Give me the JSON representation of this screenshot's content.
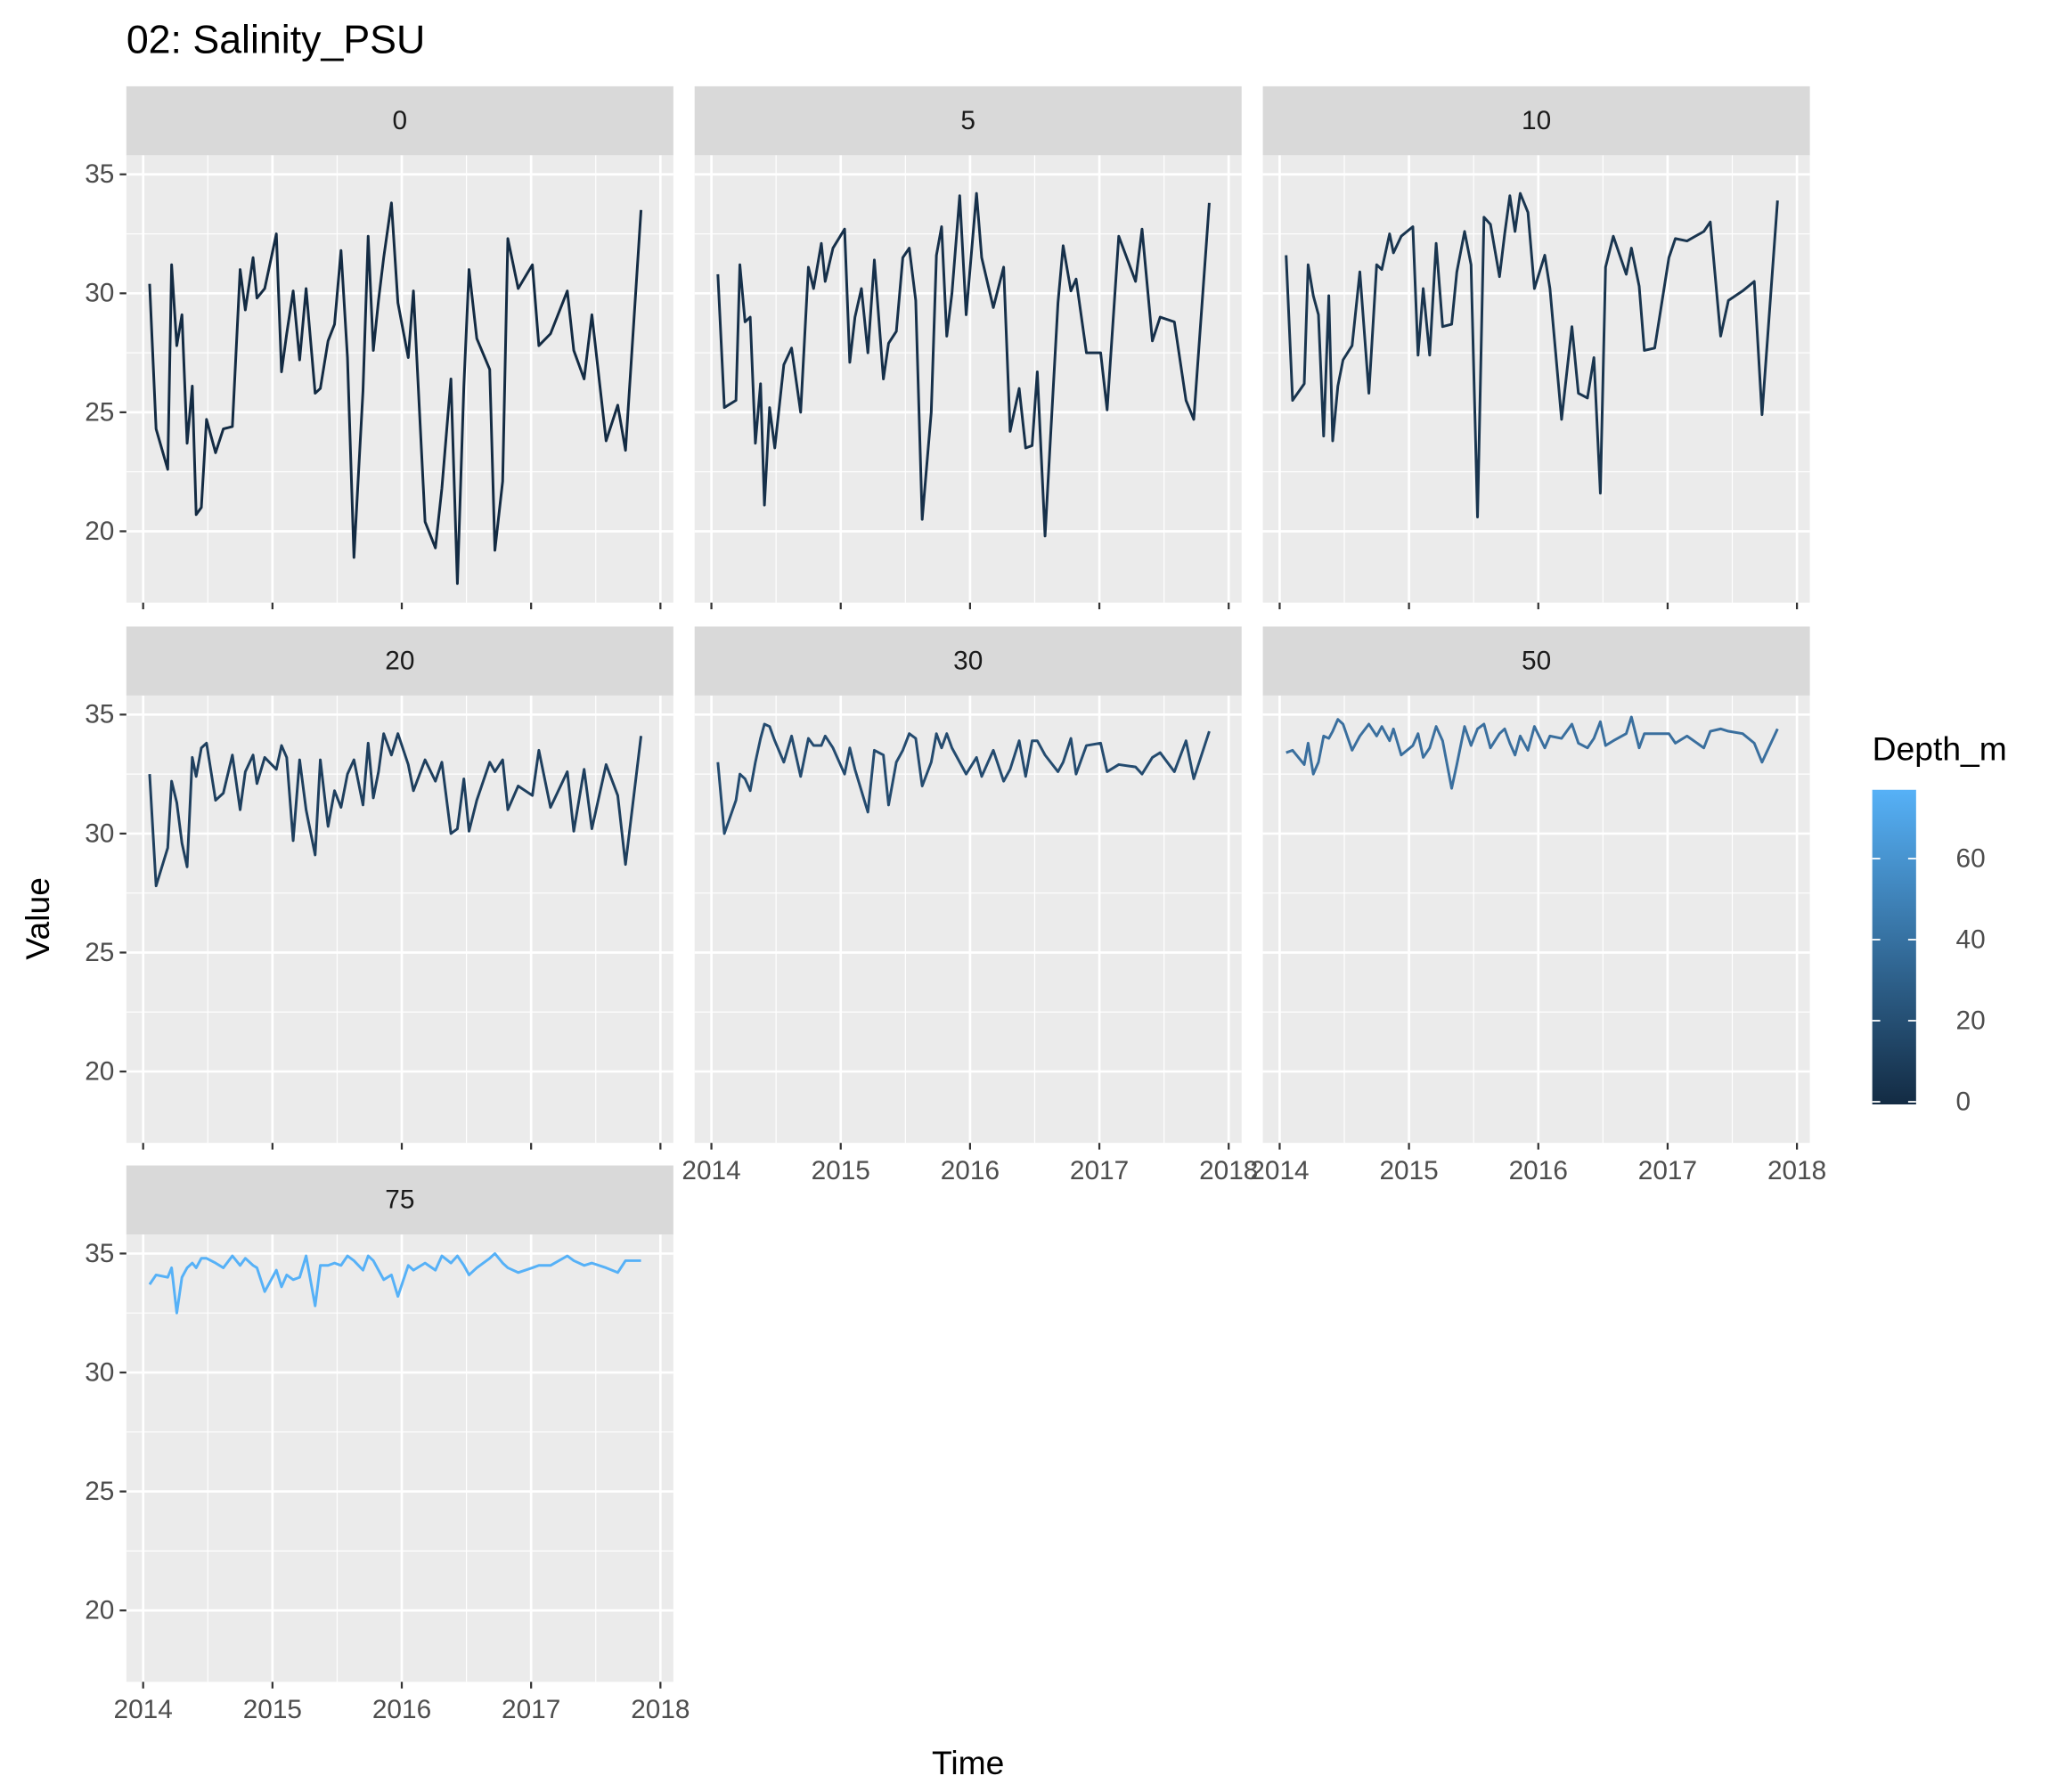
{
  "chart_data": {
    "type": "line",
    "title": "02: Salinity_PSU",
    "xlabel": "Time",
    "ylabel": "Value",
    "xlim": [
      2013.87,
      2018.1
    ],
    "xticks": [
      2014,
      2015,
      2016,
      2017,
      2018
    ],
    "ylim": [
      17.0,
      35.8
    ],
    "yticks": [
      20,
      25,
      30,
      35
    ],
    "grid": true,
    "x": [
      2014.05,
      2014.1,
      2014.19,
      2014.22,
      2014.26,
      2014.3,
      2014.34,
      2014.38,
      2014.41,
      2014.45,
      2014.49,
      2014.56,
      2014.62,
      2014.69,
      2014.75,
      2014.79,
      2014.85,
      2014.88,
      2014.94,
      2015.03,
      2015.07,
      2015.11,
      2015.16,
      2015.21,
      2015.26,
      2015.33,
      2015.37,
      2015.43,
      2015.48,
      2015.53,
      2015.58,
      2015.63,
      2015.7,
      2015.74,
      2015.78,
      2015.82,
      2015.86,
      2015.92,
      2015.97,
      2016.05,
      2016.09,
      2016.18,
      2016.26,
      2016.31,
      2016.38,
      2016.43,
      2016.48,
      2016.52,
      2016.58,
      2016.68,
      2016.72,
      2016.78,
      2016.82,
      2016.9,
      2017.01,
      2017.06,
      2017.15,
      2017.28,
      2017.33,
      2017.41,
      2017.47,
      2017.58,
      2017.67,
      2017.73,
      2017.85
    ],
    "series": [
      {
        "name": "0",
        "color": "#132B43",
        "values": [
          30.4,
          24.3,
          22.6,
          31.2,
          27.8,
          29.1,
          23.7,
          26.1,
          20.7,
          21.0,
          24.7,
          23.3,
          24.3,
          24.4,
          31.0,
          29.3,
          31.5,
          29.8,
          30.2,
          32.5,
          26.7,
          28.3,
          30.1,
          27.2,
          30.2,
          25.8,
          26.0,
          28.0,
          28.7,
          31.8,
          27.3,
          18.9,
          25.9,
          32.4,
          27.6,
          29.7,
          31.5,
          33.8,
          29.6,
          27.3,
          30.1,
          20.4,
          19.3,
          21.8,
          26.4,
          17.8,
          26.1,
          31.0,
          28.1,
          26.8,
          19.2,
          22.1,
          32.3,
          30.2,
          31.2,
          27.8,
          28.3,
          30.1,
          27.6,
          26.4,
          29.1,
          23.8,
          25.3,
          23.4,
          33.5
        ]
      },
      {
        "name": "5",
        "color": "#16304A",
        "values": [
          30.8,
          25.2,
          25.5,
          31.2,
          28.8,
          29.0,
          23.7,
          26.2,
          21.1,
          25.2,
          23.5,
          27.0,
          27.7,
          25.0,
          31.1,
          30.2,
          32.1,
          30.5,
          31.9,
          32.7,
          27.1,
          29.0,
          30.2,
          27.5,
          31.4,
          26.4,
          27.9,
          28.4,
          31.5,
          31.9,
          29.7,
          20.5,
          25.0,
          31.6,
          32.8,
          28.2,
          30.0,
          34.1,
          29.1,
          34.2,
          31.5,
          29.4,
          31.1,
          24.2,
          26.0,
          23.5,
          23.6,
          26.7,
          19.8,
          29.6,
          32.0,
          30.1,
          30.6,
          27.5,
          27.5,
          25.1,
          32.4,
          30.5,
          32.7,
          28.0,
          29.0,
          28.8,
          25.5,
          24.7,
          33.8
        ]
      },
      {
        "name": "10",
        "color": "#19354F",
        "values": [
          31.6,
          25.5,
          26.2,
          31.2,
          29.9,
          29.1,
          24.0,
          29.9,
          23.8,
          26.1,
          27.2,
          27.8,
          30.9,
          25.8,
          31.2,
          31.0,
          32.5,
          31.7,
          32.4,
          32.8,
          27.4,
          30.2,
          27.4,
          32.1,
          28.6,
          28.7,
          30.9,
          32.6,
          31.2,
          20.6,
          33.2,
          32.9,
          30.7,
          32.5,
          34.1,
          32.6,
          34.2,
          33.4,
          30.2,
          31.6,
          30.2,
          24.7,
          28.6,
          25.8,
          25.6,
          27.3,
          21.6,
          31.1,
          32.4,
          30.8,
          31.9,
          30.3,
          27.6,
          27.7,
          31.5,
          32.3,
          32.2,
          32.6,
          33.0,
          28.2,
          29.7,
          30.1,
          30.5,
          24.9,
          33.9
        ]
      },
      {
        "name": "20",
        "color": "#1E3F5E",
        "values": [
          32.5,
          27.8,
          29.4,
          32.2,
          31.3,
          29.6,
          28.6,
          33.2,
          32.4,
          33.6,
          33.8,
          31.4,
          31.7,
          33.3,
          31.0,
          32.6,
          33.3,
          32.1,
          33.2,
          32.7,
          33.7,
          33.2,
          29.7,
          33.1,
          31.0,
          29.1,
          33.1,
          30.3,
          31.8,
          31.1,
          32.5,
          33.1,
          31.2,
          33.8,
          31.5,
          32.6,
          34.2,
          33.3,
          34.2,
          32.9,
          31.8,
          33.1,
          32.2,
          33.0,
          30.0,
          30.2,
          32.3,
          30.1,
          31.4,
          33.0,
          32.6,
          33.1,
          31.0,
          32.0,
          31.6,
          33.5,
          31.1,
          32.6,
          30.1,
          32.7,
          30.2,
          32.9,
          31.6,
          28.7,
          34.1
        ]
      },
      {
        "name": "30",
        "color": "#244B6F",
        "values": [
          33.0,
          30.0,
          31.4,
          32.5,
          32.3,
          31.8,
          33.0,
          34.0,
          34.6,
          34.5,
          33.9,
          33.0,
          34.1,
          32.4,
          34.0,
          33.7,
          33.7,
          34.1,
          33.6,
          32.5,
          33.6,
          32.7,
          31.8,
          30.9,
          33.5,
          33.3,
          31.2,
          33.0,
          33.5,
          34.2,
          34.0,
          32.0,
          33.0,
          34.2,
          33.6,
          34.2,
          33.6,
          33.0,
          32.5,
          33.2,
          32.4,
          33.5,
          32.2,
          32.7,
          33.9,
          32.4,
          33.9,
          33.9,
          33.3,
          32.6,
          33.0,
          34.0,
          32.5,
          33.7,
          33.8,
          32.6,
          32.9,
          32.8,
          32.5,
          33.2,
          33.4,
          32.6,
          33.9,
          32.3,
          34.3
        ]
      },
      {
        "name": "50",
        "color": "#3A6F9E",
        "values": [
          33.4,
          33.5,
          32.9,
          33.8,
          32.5,
          33.0,
          34.1,
          34.0,
          34.3,
          34.8,
          34.6,
          33.5,
          34.1,
          34.6,
          34.1,
          34.5,
          33.9,
          34.4,
          33.3,
          33.7,
          34.2,
          33.2,
          33.6,
          34.5,
          33.9,
          31.9,
          32.9,
          34.5,
          33.7,
          34.4,
          34.6,
          33.6,
          34.2,
          34.4,
          33.8,
          33.3,
          34.1,
          33.5,
          34.5,
          33.6,
          34.1,
          34.0,
          34.6,
          33.8,
          33.6,
          34.0,
          34.7,
          33.7,
          33.9,
          34.2,
          34.9,
          33.6,
          34.2,
          34.2,
          34.2,
          33.8,
          34.1,
          33.6,
          34.3,
          34.4,
          34.3,
          34.2,
          33.8,
          33.0,
          34.4
        ]
      },
      {
        "name": "75",
        "color": "#56B1F7",
        "values": [
          33.7,
          34.1,
          34.0,
          34.4,
          32.5,
          34.0,
          34.4,
          34.6,
          34.4,
          34.8,
          34.8,
          34.6,
          34.4,
          34.9,
          34.5,
          34.8,
          34.5,
          34.4,
          33.4,
          34.3,
          33.6,
          34.1,
          33.9,
          34.0,
          34.9,
          32.8,
          34.5,
          34.5,
          34.6,
          34.5,
          34.9,
          34.7,
          34.3,
          34.9,
          34.7,
          34.3,
          33.9,
          34.1,
          33.2,
          34.5,
          34.3,
          34.6,
          34.3,
          34.9,
          34.6,
          34.9,
          34.5,
          34.1,
          34.4,
          34.8,
          35.0,
          34.6,
          34.4,
          34.2,
          34.4,
          34.5,
          34.5,
          34.9,
          34.7,
          34.5,
          34.6,
          34.4,
          34.2,
          34.7,
          34.7
        ]
      }
    ],
    "colorbar": {
      "title": "Depth_m",
      "lim": [
        0,
        75
      ],
      "ticks": [
        0,
        20,
        40,
        60
      ],
      "colors": [
        "#132B43",
        "#56B1F7"
      ]
    }
  }
}
